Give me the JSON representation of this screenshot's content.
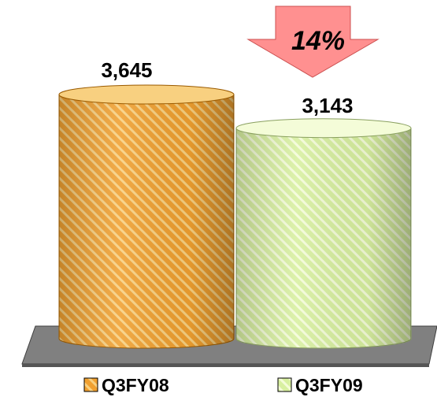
{
  "chart_data": {
    "type": "bar",
    "style": "3d-cylinder",
    "categories": [
      "Q3FY08",
      "Q3FY09"
    ],
    "values": [
      3645,
      3143
    ],
    "value_labels": [
      "3,645",
      "3,143"
    ],
    "change_callout": {
      "text": "14%",
      "direction": "down"
    },
    "legend": {
      "placement": "bottom",
      "entries": [
        "Q3FY08",
        "Q3FY09"
      ]
    },
    "title": "",
    "xlabel": "",
    "ylabel": "",
    "grid": false,
    "colors": {
      "series_1": "#f0a030",
      "series_1_stripe": "#f8d080",
      "series_1_edge": "#9a5a00",
      "series_2": "#d8f0a0",
      "series_2_stripe": "#f4fcd8",
      "series_2_edge": "#8aa060",
      "floor": "#808080",
      "arrow": "#ff9090"
    }
  }
}
